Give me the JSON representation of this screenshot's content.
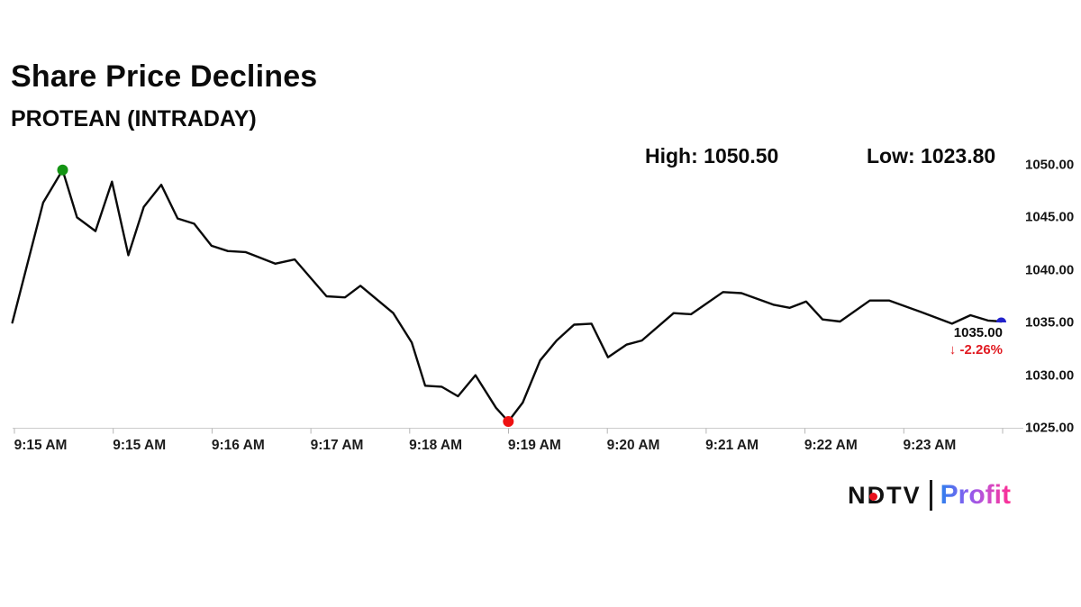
{
  "header": {
    "title": "Share Price Declines",
    "subtitle": "PROTEAN (INTRADAY)"
  },
  "stats": {
    "high_label": "High: 1050.50",
    "low_label": "Low: 1023.80"
  },
  "chart_data": {
    "type": "line",
    "title": "Share Price Declines",
    "subtitle": "PROTEAN (INTRADAY)",
    "high": 1050.5,
    "low": 1023.8,
    "last_price": "1035.00",
    "change_arrow": "↓",
    "change_percent": "-2.26%",
    "line_color": "#0a0a0a",
    "axis_color": "#cccccc",
    "tick_color": "#b5b5b5",
    "grid": false,
    "legend": "none",
    "ylim": [
      1025,
      1050
    ],
    "y_tick_labels": [
      "1050.00",
      "1045.00",
      "1040.00",
      "1035.00",
      "1030.00",
      "1025.00"
    ],
    "x_tick_labels": [
      "9:15 AM",
      "9:15 AM",
      "9:16 AM",
      "9:17 AM",
      "9:18 AM",
      "9:19 AM",
      "9:20 AM",
      "9:21 AM",
      "9:22 AM",
      "9:23 AM"
    ],
    "series": [
      {
        "name": "PROTEAN intraday price",
        "points": [
          [
            1.2,
            1035.0
          ],
          [
            4.2,
            1046.4
          ],
          [
            6.1,
            1049.5
          ],
          [
            7.5,
            1045.0
          ],
          [
            9.3,
            1043.7
          ],
          [
            10.9,
            1048.4
          ],
          [
            12.5,
            1041.4
          ],
          [
            14.0,
            1046.0
          ],
          [
            15.7,
            1048.1
          ],
          [
            17.3,
            1044.9
          ],
          [
            18.9,
            1044.4
          ],
          [
            20.6,
            1042.3
          ],
          [
            22.2,
            1041.8
          ],
          [
            23.9,
            1041.7
          ],
          [
            24.7,
            1041.4
          ],
          [
            26.8,
            1040.6
          ],
          [
            28.7,
            1041.0
          ],
          [
            31.8,
            1037.5
          ],
          [
            33.6,
            1037.4
          ],
          [
            35.1,
            1038.5
          ],
          [
            38.3,
            1035.9
          ],
          [
            40.1,
            1033.1
          ],
          [
            41.4,
            1029.0
          ],
          [
            43.0,
            1028.9
          ],
          [
            44.6,
            1028.0
          ],
          [
            46.3,
            1030.0
          ],
          [
            48.3,
            1026.9
          ],
          [
            49.5,
            1025.6
          ],
          [
            50.9,
            1027.4
          ],
          [
            52.6,
            1031.4
          ],
          [
            54.2,
            1033.3
          ],
          [
            55.9,
            1034.8
          ],
          [
            57.6,
            1034.9
          ],
          [
            59.2,
            1031.7
          ],
          [
            61.0,
            1032.9
          ],
          [
            62.5,
            1033.3
          ],
          [
            65.6,
            1035.9
          ],
          [
            67.3,
            1035.8
          ],
          [
            70.4,
            1037.9
          ],
          [
            72.2,
            1037.8
          ],
          [
            75.3,
            1036.7
          ],
          [
            76.9,
            1036.4
          ],
          [
            78.5,
            1037.0
          ],
          [
            80.1,
            1035.3
          ],
          [
            81.8,
            1035.1
          ],
          [
            84.7,
            1037.1
          ],
          [
            86.6,
            1037.1
          ],
          [
            89.7,
            1036.0
          ],
          [
            92.7,
            1034.9
          ],
          [
            94.5,
            1035.7
          ],
          [
            96.2,
            1035.2
          ],
          [
            97.5,
            1035.1
          ]
        ]
      }
    ],
    "markers": [
      {
        "point_index": 2,
        "color": "#149414",
        "shape": "circle",
        "r": 6,
        "name": "high-point-marker"
      },
      {
        "point_index": 27,
        "color": "#ee1111",
        "shape": "circle",
        "r": 6,
        "name": "low-point-marker"
      },
      {
        "point_index": 51,
        "color": "#2222cc",
        "shape": "semicircle",
        "r": 5.5,
        "name": "last-point-marker"
      }
    ]
  },
  "footer_logo": {
    "ndtv": "NDTV",
    "profit": "Profit",
    "dot_color": "#e8101c"
  }
}
